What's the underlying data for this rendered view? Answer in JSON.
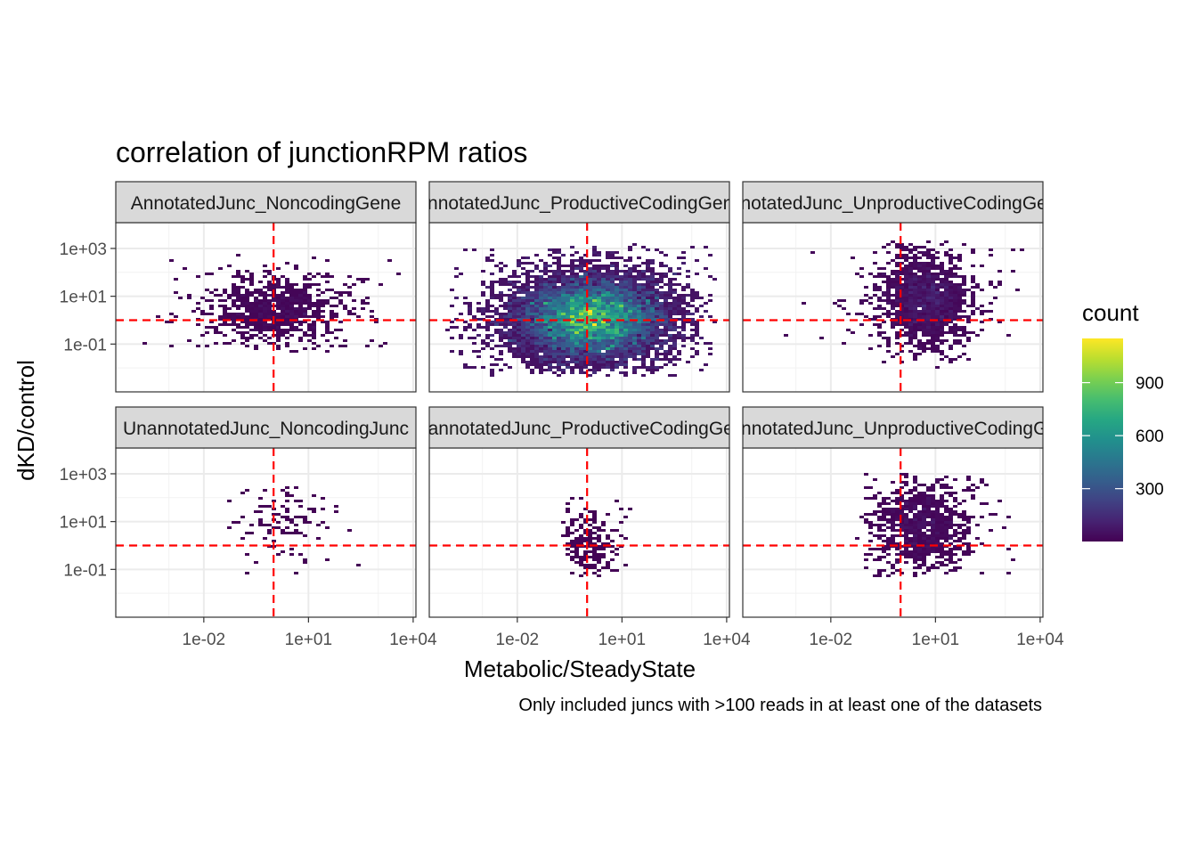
{
  "chart_data": {
    "type": "heatmap",
    "subtype": "2d-binned-hexbin-facets",
    "title": "correlation of junctionRPM ratios",
    "xlabel": "Metabolic/SteadyState",
    "ylabel": "dKD/control",
    "caption": "Only included juncs with >100 reads in at least one of the datasets",
    "x_scale": "log10",
    "y_scale": "log10",
    "xlim": [
      3e-05,
      12000
    ],
    "ylim": [
      0.001,
      12000
    ],
    "x_ticks": [
      0.01,
      10,
      10000
    ],
    "x_tick_labels": [
      "1e-02",
      "1e+01",
      "1e+04"
    ],
    "y_ticks": [
      0.1,
      10,
      1000
    ],
    "y_tick_labels": [
      "1e-01",
      "1e+01",
      "1e+03"
    ],
    "reference_lines": {
      "x": 1,
      "y": 1,
      "color": "#ff0000",
      "style": "dashed"
    },
    "grid": true,
    "facet_layout": {
      "rows": 2,
      "cols": 3
    },
    "legend": {
      "title": "count",
      "position": "right",
      "colormap": "viridis",
      "range": [
        1,
        1150
      ],
      "ticks": [
        300,
        600,
        900
      ],
      "tick_labels": [
        "300",
        "600",
        "900"
      ]
    },
    "facets": [
      {
        "label": "AnnotatedJunc_NoncodingGene",
        "center": [
          1.6,
          3
        ],
        "spread": [
          0.45,
          0.5
        ],
        "n": 900,
        "peak": 60,
        "xrange": [
          8e-05,
          4000
        ],
        "yrange": [
          0.05,
          500
        ]
      },
      {
        "label": "AnnotatedJunc_ProductiveCodingGene",
        "center": [
          1.3,
          1.2
        ],
        "spread": [
          0.5,
          0.55
        ],
        "n": 9000,
        "peak": 1150,
        "xrange": [
          0.0001,
          5000
        ],
        "yrange": [
          0.005,
          1500
        ]
      },
      {
        "label": "AnnotatedJunc_UnproductiveCodingGene",
        "center": [
          5,
          8
        ],
        "spread": [
          0.3,
          0.6
        ],
        "n": 1600,
        "peak": 120,
        "xrange": [
          0.0001,
          5000
        ],
        "yrange": [
          0.01,
          2000
        ]
      },
      {
        "label": "UnannotatedJunc_NoncodingJunc",
        "center": [
          1.8,
          8
        ],
        "spread": [
          0.35,
          0.5
        ],
        "n": 120,
        "peak": 8,
        "xrange": [
          0.02,
          300
        ],
        "yrange": [
          0.05,
          300
        ]
      },
      {
        "label": "UnannotatedJunc_ProductiveCodingGene",
        "center": [
          1.2,
          1.5
        ],
        "spread": [
          0.18,
          0.45
        ],
        "n": 230,
        "peak": 14,
        "xrange": [
          0.2,
          20
        ],
        "yrange": [
          0.05,
          100
        ]
      },
      {
        "label": "UnannotatedJunc_UnproductiveCodingGene",
        "center": [
          4,
          6
        ],
        "spread": [
          0.32,
          0.6
        ],
        "n": 1000,
        "peak": 70,
        "xrange": [
          0.05,
          5000
        ],
        "yrange": [
          0.05,
          1000
        ]
      }
    ]
  }
}
